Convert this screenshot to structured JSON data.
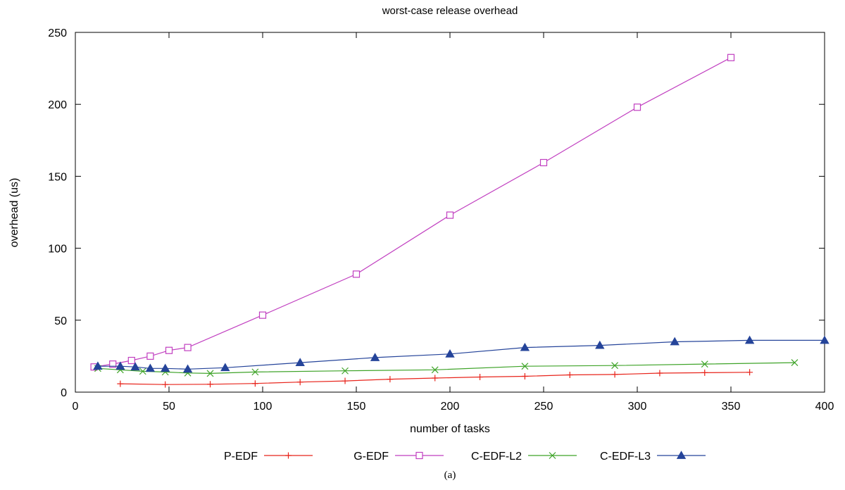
{
  "chart_data": {
    "type": "line",
    "title": "worst-case release overhead",
    "xlabel": "number of tasks",
    "ylabel": "overhead (us)",
    "xlim": [
      0,
      400
    ],
    "ylim": [
      0,
      250
    ],
    "xticks": [
      0,
      50,
      100,
      150,
      200,
      250,
      300,
      350,
      400
    ],
    "yticks": [
      0,
      50,
      100,
      150,
      200,
      250
    ],
    "grid": false,
    "legend_position": "bottom",
    "caption": "(a)",
    "series": [
      {
        "name": "P-EDF",
        "color": "#e8241b",
        "marker": "plus",
        "points": [
          [
            24,
            5.8
          ],
          [
            48,
            5.3
          ],
          [
            72,
            5.5
          ],
          [
            96,
            6.0
          ],
          [
            120,
            7.0
          ],
          [
            144,
            7.8
          ],
          [
            168,
            9.0
          ],
          [
            192,
            9.8
          ],
          [
            216,
            10.5
          ],
          [
            240,
            11.0
          ],
          [
            264,
            12.0
          ],
          [
            288,
            12.3
          ],
          [
            312,
            13.2
          ],
          [
            336,
            13.5
          ],
          [
            360,
            13.8
          ]
        ]
      },
      {
        "name": "G-EDF",
        "color": "#c13fc0",
        "marker": "square",
        "points": [
          [
            10,
            17.5
          ],
          [
            20,
            19.5
          ],
          [
            30,
            22.0
          ],
          [
            40,
            25.0
          ],
          [
            50,
            29.0
          ],
          [
            60,
            31.0
          ],
          [
            100,
            53.5
          ],
          [
            150,
            82.0
          ],
          [
            200,
            123.0
          ],
          [
            250,
            159.5
          ],
          [
            300,
            198.0
          ],
          [
            350,
            232.5
          ]
        ]
      },
      {
        "name": "C-EDF-L2",
        "color": "#3ea328",
        "marker": "cross",
        "points": [
          [
            12,
            16.5
          ],
          [
            24,
            15.5
          ],
          [
            36,
            14.5
          ],
          [
            48,
            14.0
          ],
          [
            60,
            13.3
          ],
          [
            72,
            13.0
          ],
          [
            96,
            14.0
          ],
          [
            144,
            14.8
          ],
          [
            192,
            15.5
          ],
          [
            240,
            18.0
          ],
          [
            288,
            18.5
          ],
          [
            336,
            19.5
          ],
          [
            384,
            20.5
          ]
        ]
      },
      {
        "name": "C-EDF-L3",
        "color": "#25449a",
        "marker": "triangle",
        "points": [
          [
            12,
            18.0
          ],
          [
            24,
            18.0
          ],
          [
            32,
            17.5
          ],
          [
            40,
            16.5
          ],
          [
            48,
            16.5
          ],
          [
            60,
            16.0
          ],
          [
            80,
            17.0
          ],
          [
            120,
            20.5
          ],
          [
            160,
            24.0
          ],
          [
            200,
            26.5
          ],
          [
            240,
            31.0
          ],
          [
            280,
            32.5
          ],
          [
            320,
            35.0
          ],
          [
            360,
            36.0
          ],
          [
            400,
            36.0
          ]
        ]
      }
    ]
  }
}
